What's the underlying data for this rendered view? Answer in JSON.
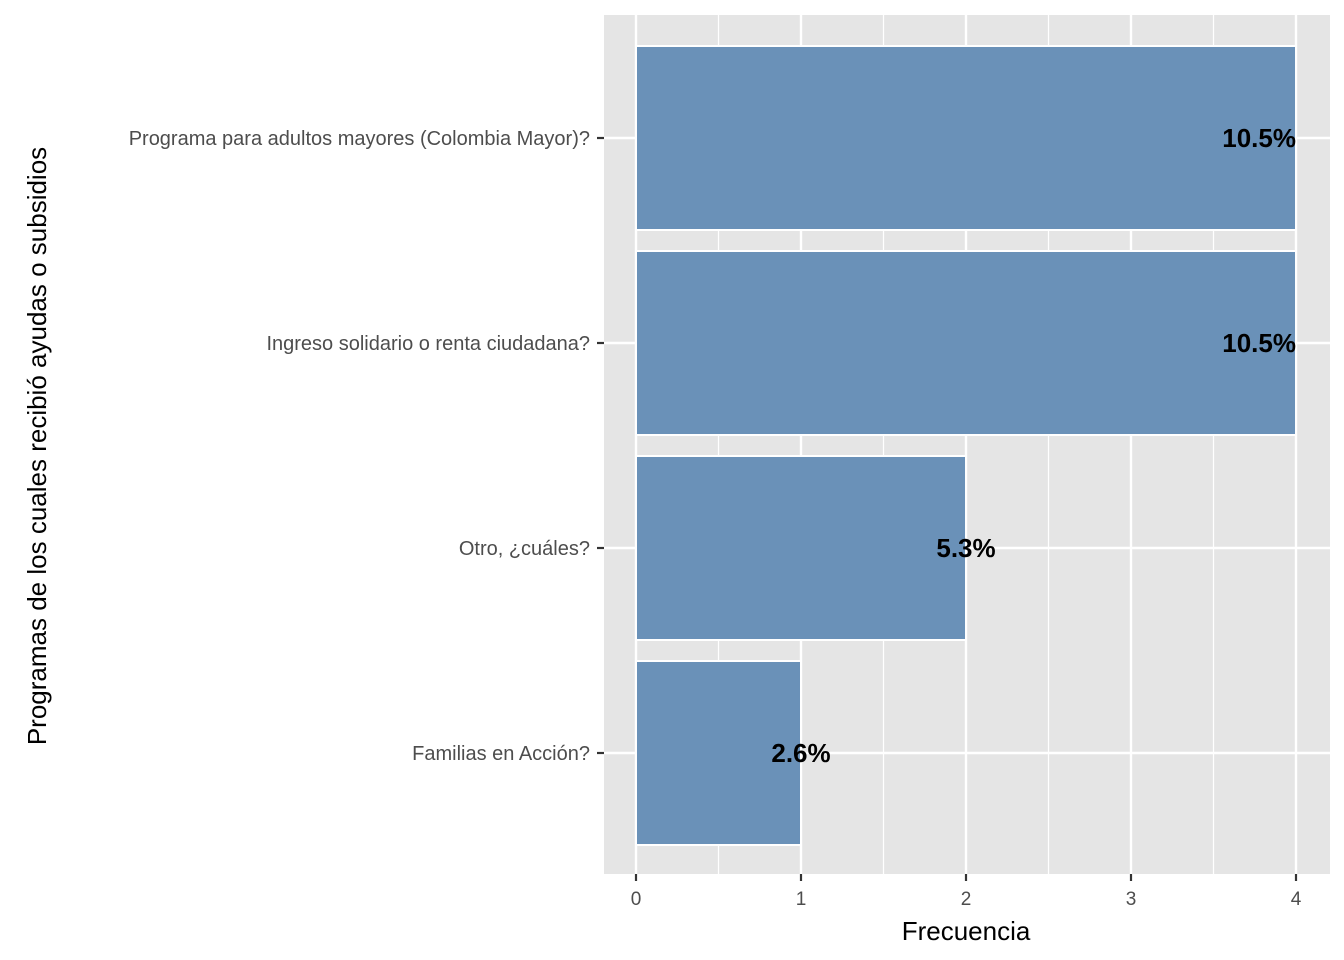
{
  "chart_data": {
    "type": "bar",
    "orientation": "horizontal",
    "categories": [
      "Programa para adultos mayores (Colombia Mayor)?",
      "Ingreso solidario o renta ciudadana?",
      "Otro, ¿cuáles?",
      "Familias en Acción?"
    ],
    "values": [
      4,
      4,
      2,
      1
    ],
    "data_labels": [
      "10.5%",
      "10.5%",
      "5.3%",
      "2.6%"
    ],
    "xlabel": "Frecuencia",
    "ylabel": "Programas de los cuales recibió ayudas o subsidios",
    "xlim": [
      0,
      4
    ],
    "x_ticks": [
      0,
      1,
      2,
      3,
      4
    ],
    "grid": true,
    "legend": "none",
    "colors": {
      "bar": "#6a91b8",
      "panel": "#e5e5e5",
      "grid": "#ffffff"
    }
  }
}
